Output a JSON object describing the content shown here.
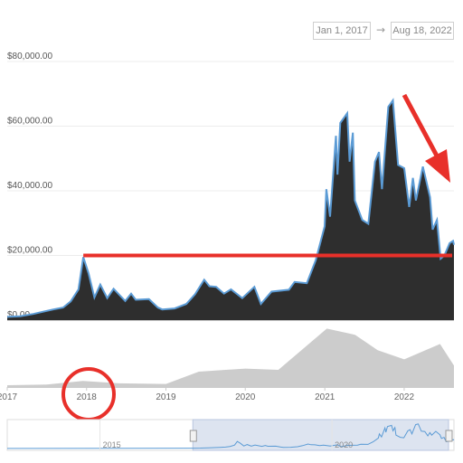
{
  "range_selector": {
    "from": "Jan 1, 2017",
    "arrow": "→",
    "to": "Aug 18, 2022"
  },
  "colors": {
    "price_fill": "#2e2e2e",
    "price_line": "#5b9bd5",
    "volume_fill": "#cccccc",
    "annotation": "#e8302a",
    "navigator_fill": "#dde4f0",
    "navigator_line": "#5b9bd5"
  },
  "chart_data": {
    "type": "area",
    "title": "",
    "xlabel": "",
    "ylabel": "",
    "y_ticks": [
      "$0.00",
      "$20,000.00",
      "$40,000.00",
      "$60,000.00",
      "$80,000.00"
    ],
    "y_tick_values": [
      0,
      20000,
      40000,
      60000,
      80000
    ],
    "ylim": [
      0,
      80000
    ],
    "xlim": [
      "2017-01-01",
      "2022-08-18"
    ],
    "x_ticks": [
      "2017",
      "2018",
      "2019",
      "2020",
      "2021",
      "2022"
    ],
    "grid": true,
    "series": [
      {
        "values_kind": "price",
        "points": [
          [
            "2017-01-01",
            1000
          ],
          [
            "2017-03-01",
            1200
          ],
          [
            "2017-05-01",
            1900
          ],
          [
            "2017-06-15",
            2600
          ],
          [
            "2017-08-01",
            3300
          ],
          [
            "2017-09-15",
            3900
          ],
          [
            "2017-10-20",
            5800
          ],
          [
            "2017-11-25",
            9500
          ],
          [
            "2017-12-17",
            19500
          ],
          [
            "2018-01-10",
            14500
          ],
          [
            "2018-02-06",
            7000
          ],
          [
            "2018-03-05",
            11000
          ],
          [
            "2018-04-06",
            6800
          ],
          [
            "2018-05-05",
            9700
          ],
          [
            "2018-06-28",
            5900
          ],
          [
            "2018-07-25",
            8200
          ],
          [
            "2018-08-15",
            6300
          ],
          [
            "2018-10-15",
            6500
          ],
          [
            "2018-11-25",
            3900
          ],
          [
            "2018-12-15",
            3300
          ],
          [
            "2019-02-10",
            3600
          ],
          [
            "2019-04-05",
            5000
          ],
          [
            "2019-05-15",
            8000
          ],
          [
            "2019-06-26",
            12500
          ],
          [
            "2019-07-20",
            10500
          ],
          [
            "2019-08-20",
            10300
          ],
          [
            "2019-09-25",
            8200
          ],
          [
            "2019-10-27",
            9500
          ],
          [
            "2019-12-18",
            6800
          ],
          [
            "2020-02-12",
            10300
          ],
          [
            "2020-03-13",
            5000
          ],
          [
            "2020-05-01",
            8800
          ],
          [
            "2020-07-20",
            9400
          ],
          [
            "2020-08-15",
            11800
          ],
          [
            "2020-10-10",
            11400
          ],
          [
            "2020-11-20",
            18500
          ],
          [
            "2020-12-31",
            29000
          ],
          [
            "2021-01-08",
            40500
          ],
          [
            "2021-01-25",
            32000
          ],
          [
            "2021-02-21",
            57000
          ],
          [
            "2021-02-28",
            45000
          ],
          [
            "2021-03-13",
            61000
          ],
          [
            "2021-04-14",
            64000
          ],
          [
            "2021-04-25",
            49000
          ],
          [
            "2021-05-10",
            58000
          ],
          [
            "2021-05-19",
            37000
          ],
          [
            "2021-06-22",
            31000
          ],
          [
            "2021-07-20",
            29800
          ],
          [
            "2021-08-20",
            49000
          ],
          [
            "2021-09-07",
            52000
          ],
          [
            "2021-09-21",
            40500
          ],
          [
            "2021-10-20",
            66000
          ],
          [
            "2021-11-10",
            68000
          ],
          [
            "2021-12-04",
            48000
          ],
          [
            "2022-01-01",
            47000
          ],
          [
            "2022-01-24",
            35000
          ],
          [
            "2022-02-10",
            44000
          ],
          [
            "2022-02-24",
            37000
          ],
          [
            "2022-03-28",
            47500
          ],
          [
            "2022-04-30",
            38000
          ],
          [
            "2022-05-12",
            28000
          ],
          [
            "2022-06-01",
            31000
          ],
          [
            "2022-06-18",
            19000
          ],
          [
            "2022-07-05",
            20000
          ],
          [
            "2022-07-29",
            23800
          ],
          [
            "2022-08-14",
            24500
          ],
          [
            "2022-08-18",
            23300
          ]
        ]
      }
    ],
    "volume_series": {
      "values_kind": "volume",
      "note_relative": true,
      "points": [
        [
          "2017-01-01",
          0.03
        ],
        [
          "2017-07-01",
          0.04
        ],
        [
          "2017-12-15",
          0.1
        ],
        [
          "2018-06-01",
          0.06
        ],
        [
          "2019-01-01",
          0.05
        ],
        [
          "2019-06-01",
          0.25
        ],
        [
          "2020-01-01",
          0.3
        ],
        [
          "2020-06-01",
          0.28
        ],
        [
          "2021-01-10",
          0.95
        ],
        [
          "2021-05-20",
          0.85
        ],
        [
          "2021-09-01",
          0.6
        ],
        [
          "2022-01-01",
          0.45
        ],
        [
          "2022-06-15",
          0.7
        ],
        [
          "2022-08-18",
          0.35
        ]
      ]
    },
    "navigator": {
      "x_ticks": [
        "2015",
        "2020"
      ]
    }
  }
}
